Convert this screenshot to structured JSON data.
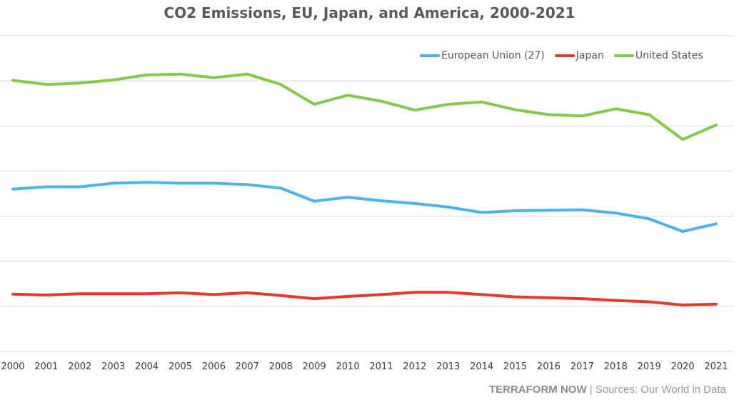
{
  "chart_data": {
    "type": "line",
    "title": "CO2 Emissions, EU, Japan, and America, 2000-2021",
    "x": [
      "2000",
      "2001",
      "2002",
      "2003",
      "2004",
      "2005",
      "2006",
      "2007",
      "2008",
      "2009",
      "2010",
      "2011",
      "2012",
      "2013",
      "2014",
      "2015",
      "2016",
      "2017",
      "2018",
      "2019",
      "2020",
      "2021"
    ],
    "series": [
      {
        "name": "European Union (27)",
        "color": "#4db3ee",
        "values": [
          3.6,
          3.65,
          3.65,
          3.73,
          3.75,
          3.73,
          3.73,
          3.7,
          3.62,
          3.33,
          3.42,
          3.34,
          3.28,
          3.2,
          3.08,
          3.12,
          3.13,
          3.14,
          3.07,
          2.94,
          2.66,
          2.83
        ]
      },
      {
        "name": "Japan",
        "color": "#e8392e",
        "values": [
          1.27,
          1.25,
          1.28,
          1.28,
          1.28,
          1.3,
          1.26,
          1.3,
          1.24,
          1.17,
          1.22,
          1.26,
          1.31,
          1.31,
          1.26,
          1.21,
          1.19,
          1.17,
          1.13,
          1.1,
          1.03,
          1.05
        ]
      },
      {
        "name": "United States",
        "color": "#86c94a",
        "values": [
          6.01,
          5.92,
          5.95,
          6.02,
          6.13,
          6.15,
          6.07,
          6.15,
          5.92,
          5.48,
          5.68,
          5.55,
          5.35,
          5.48,
          5.53,
          5.36,
          5.25,
          5.22,
          5.38,
          5.25,
          4.7,
          5.02
        ]
      }
    ],
    "ylim": [
      0,
      7
    ],
    "gridlines": true,
    "legend_position": "top-right"
  },
  "footer": {
    "brand": "TERRAFORM NOW",
    "separator": " | ",
    "sources": "Sources: Our World in Data"
  }
}
